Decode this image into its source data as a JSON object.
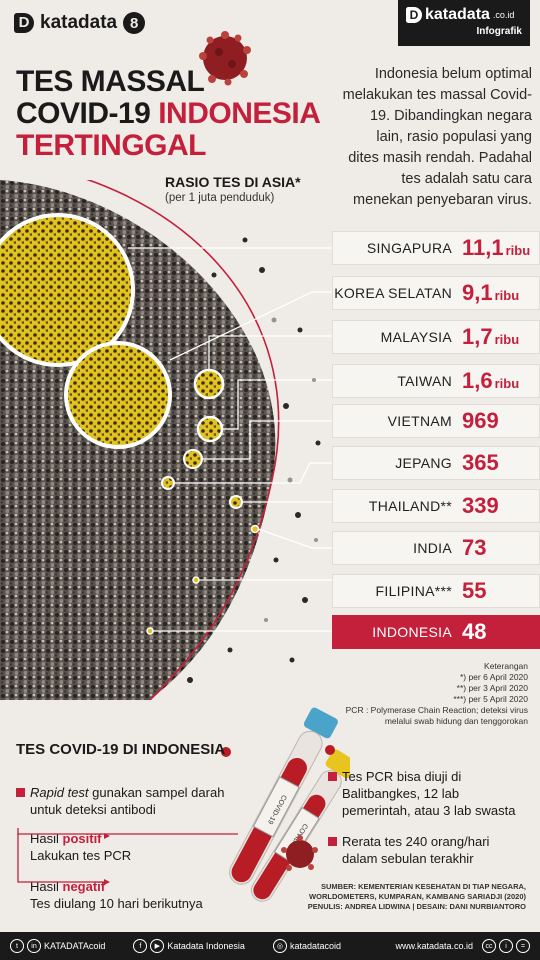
{
  "header": {
    "logo_text": "katadata",
    "logo_mark": "D",
    "logo_badge": "8",
    "brand_name": "katadata",
    "brand_suffix": ".co.id",
    "brand_sub": "Infografik"
  },
  "title": {
    "line1": "TES MASSAL",
    "line2_a": "COVID-19 ",
    "line2_b": "INDONESIA",
    "line3": "TERTINGGAL"
  },
  "intro": "Indonesia belum optimal melakukan tes massal Covid-19. Dibandingkan negara lain, rasio populasi yang dites masih rendah. Padahal tes adalah satu cara menekan penyebaran virus.",
  "ratio": {
    "title": "RASIO TES DI ASIA*",
    "subtitle": "(per 1 juta penduduk)"
  },
  "chart_data": {
    "type": "table",
    "title": "RASIO TES DI ASIA*",
    "subtitle": "(per 1 juta penduduk)",
    "rows": [
      {
        "country": "SINGAPURA",
        "value": "11,1",
        "unit": "ribu",
        "numeric": 11100
      },
      {
        "country": "KOREA SELATAN",
        "value": "9,1",
        "unit": "ribu",
        "numeric": 9100
      },
      {
        "country": "MALAYSIA",
        "value": "1,7",
        "unit": "ribu",
        "numeric": 1700
      },
      {
        "country": "TAIWAN",
        "value": "1,6",
        "unit": "ribu",
        "numeric": 1600
      },
      {
        "country": "VIETNAM",
        "value": "969",
        "unit": "",
        "numeric": 969
      },
      {
        "country": "JEPANG",
        "value": "365",
        "unit": "",
        "numeric": 365
      },
      {
        "country": "THAILAND**",
        "value": "339",
        "unit": "",
        "numeric": 339
      },
      {
        "country": "INDIA",
        "value": "73",
        "unit": "",
        "numeric": 73
      },
      {
        "country": "FILIPINA***",
        "value": "55",
        "unit": "",
        "numeric": 55
      },
      {
        "country": "INDONESIA",
        "value": "48",
        "unit": "",
        "numeric": 48,
        "highlight": true
      }
    ]
  },
  "notes": {
    "heading": "Keterangan",
    "n1": "*) per 6 April 2020",
    "n2": "**) per 3 April 2020",
    "n3": "***) per 5 April 2020",
    "pcr": "PCR : Polymerase Chain Reaction; deteksi virus melalui swab hidung dan tenggorokan"
  },
  "tests": {
    "title": "TES COVID-19 DI INDONESIA",
    "rapid_a": "Rapid test",
    "rapid_b": " gunakan sampel darah untuk deteksi antibodi",
    "pos_a": "Hasil ",
    "pos_b": "positif",
    "pos_c": "Lakukan tes PCR",
    "neg_a": "Hasil ",
    "neg_b": "negatif",
    "neg_c": "Tes diulang 10 hari berikutnya",
    "pcr_labs": "Tes PCR bisa diuji di Balitbangkes, 12 lab pemerintah, atau 3 lab swasta",
    "avg": "Rerata tes 240 orang/hari dalam sebulan terakhir",
    "tube_label": "COVID-19"
  },
  "source": {
    "line1": "SUMBER: KEMENTERIAN KESEHATAN DI TIAP NEGARA, WORLDOMETERS, KUMPARAN, KAMBANG SARIADJI (2020)",
    "line2": "PENULIS: ANDREA LIDWINA | DESAIN: DANI NURBIANTORO"
  },
  "footer": {
    "linkedin": "KATADATAcoid",
    "facebook": "Katadata Indonesia",
    "instagram": "katadatacoid",
    "site": "www.katadata.co.id"
  },
  "colors": {
    "accent": "#c41f3b",
    "bg": "#efebe6",
    "dark": "#1a1a1a",
    "yellow": "#e2c21c"
  }
}
